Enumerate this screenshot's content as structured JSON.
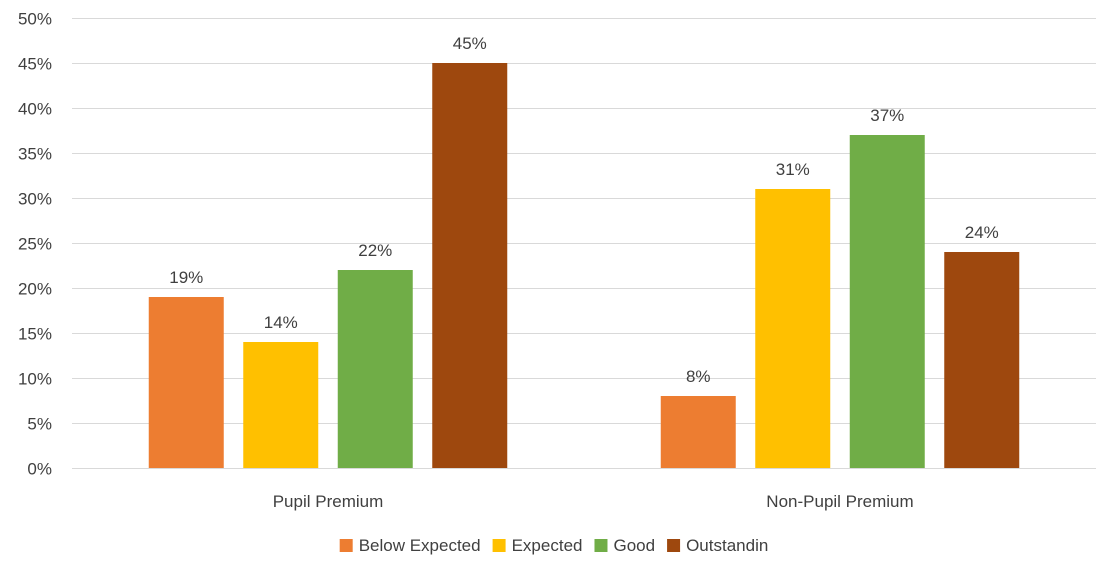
{
  "chart_data": {
    "type": "bar",
    "title": "",
    "xlabel": "",
    "ylabel": "",
    "categories": [
      "Pupil Premium",
      "Non-Pupil Premium"
    ],
    "series": [
      {
        "name": "Below Expected",
        "values": [
          19,
          8
        ],
        "color": "#ED7D31"
      },
      {
        "name": "Expected",
        "values": [
          14,
          31
        ],
        "color": "#FFC000"
      },
      {
        "name": "Good",
        "values": [
          22,
          37
        ],
        "color": "#70AD47"
      },
      {
        "name": "Outstandin",
        "values": [
          45,
          24
        ],
        "color": "#9E480E"
      }
    ],
    "data_labels": [
      [
        "19%",
        "8%"
      ],
      [
        "14%",
        "31%"
      ],
      [
        "22%",
        "37%"
      ],
      [
        "45%",
        "24%"
      ]
    ],
    "ylim": [
      0,
      50
    ],
    "yticks": [
      0,
      5,
      10,
      15,
      20,
      25,
      30,
      35,
      40,
      45,
      50
    ],
    "ytick_labels": [
      "0%",
      "5%",
      "10%",
      "15%",
      "20%",
      "25%",
      "30%",
      "35%",
      "40%",
      "45%",
      "50%"
    ],
    "grid": true,
    "legend_position": "bottom"
  }
}
